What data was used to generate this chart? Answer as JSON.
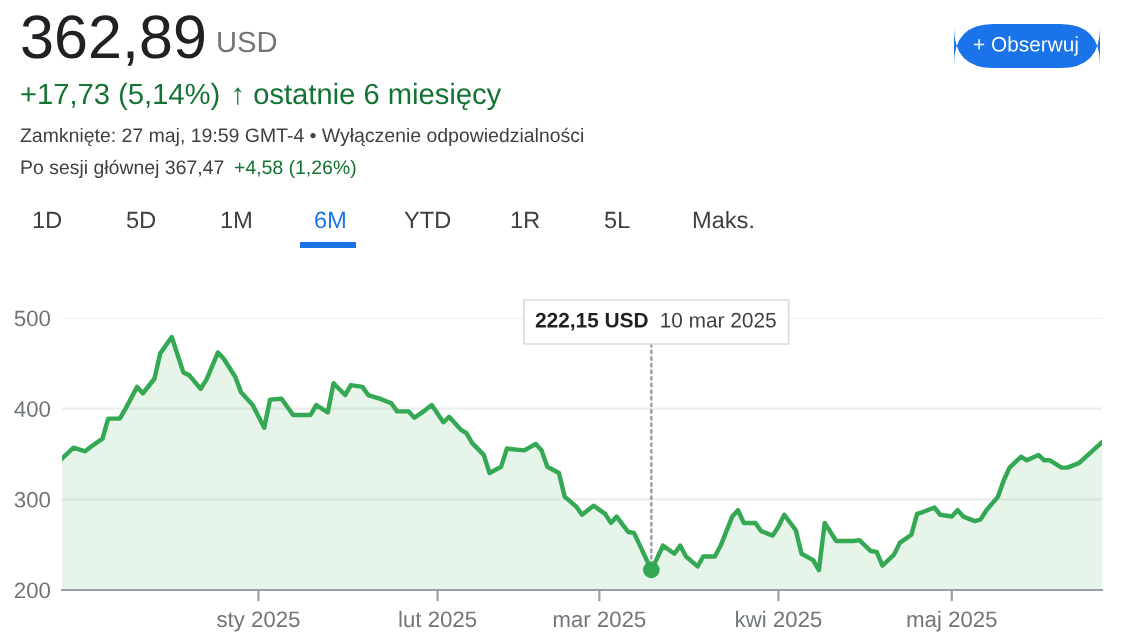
{
  "chart_data": {
    "type": "area",
    "title": "362,89",
    "color": "#34a853",
    "x": [
      "2024-11-28",
      "2024-11-30",
      "2024-12-02",
      "2024-12-03",
      "2024-12-05",
      "2024-12-06",
      "2024-12-08",
      "2024-12-09",
      "2024-12-11",
      "2024-12-12",
      "2024-12-14",
      "2024-12-15",
      "2024-12-17",
      "2024-12-19",
      "2024-12-20",
      "2024-12-22",
      "2024-12-23",
      "2024-12-25",
      "2024-12-26",
      "2024-12-28",
      "2024-12-29",
      "2024-12-31",
      "2025-01-02",
      "2025-01-03",
      "2025-01-05",
      "2025-01-07",
      "2025-01-10",
      "2025-01-11",
      "2025-01-13",
      "2025-01-14",
      "2025-01-16",
      "2025-01-17",
      "2025-01-19",
      "2025-01-20",
      "2025-01-22",
      "2025-01-24",
      "2025-01-25",
      "2025-01-27",
      "2025-01-28",
      "2025-01-30",
      "2025-01-31",
      "2025-02-02",
      "2025-02-03",
      "2025-02-05",
      "2025-02-06",
      "2025-02-07",
      "2025-02-09",
      "2025-02-10",
      "2025-02-12",
      "2025-02-13",
      "2025-02-16",
      "2025-02-18",
      "2025-02-19",
      "2025-02-20",
      "2025-02-22",
      "2025-02-23",
      "2025-02-25",
      "2025-02-26",
      "2025-02-28",
      "2025-03-02",
      "2025-03-03",
      "2025-03-04",
      "2025-03-06",
      "2025-03-07",
      "2025-03-10",
      "2025-03-11",
      "2025-03-12",
      "2025-03-14",
      "2025-03-15",
      "2025-03-16",
      "2025-03-18",
      "2025-03-19",
      "2025-03-21",
      "2025-03-22",
      "2025-03-24",
      "2025-03-25",
      "2025-03-26",
      "2025-03-28",
      "2025-03-29",
      "2025-03-31",
      "2025-04-01",
      "2025-04-02",
      "2025-04-04",
      "2025-04-05",
      "2025-04-07",
      "2025-04-08",
      "2025-04-09",
      "2025-04-11",
      "2025-04-14",
      "2025-04-15",
      "2025-04-17",
      "2025-04-18",
      "2025-04-19",
      "2025-04-21",
      "2025-04-22",
      "2025-04-24",
      "2025-04-25",
      "2025-04-26",
      "2025-04-28",
      "2025-04-29",
      "2025-05-01",
      "2025-05-02",
      "2025-05-03",
      "2025-05-05",
      "2025-05-06",
      "2025-05-07",
      "2025-05-09",
      "2025-05-10",
      "2025-05-11",
      "2025-05-13",
      "2025-05-14",
      "2025-05-16",
      "2025-05-17",
      "2025-05-18",
      "2025-05-20",
      "2025-05-21",
      "2025-05-23",
      "2025-05-27"
    ],
    "values": [
      345,
      357,
      353,
      358,
      367,
      389,
      389,
      400,
      424,
      417,
      433,
      461,
      479,
      440,
      437,
      422,
      432,
      462,
      455,
      435,
      418,
      404,
      379,
      410,
      411,
      393,
      393,
      404,
      396,
      428,
      415,
      426,
      424,
      415,
      411,
      406,
      397,
      397,
      390,
      399,
      404,
      385,
      391,
      377,
      373,
      362,
      349,
      329,
      336,
      356,
      354,
      361,
      354,
      336,
      329,
      303,
      292,
      283,
      293,
      284,
      274,
      281,
      264,
      263,
      222.15,
      235,
      249,
      240,
      249,
      237,
      226,
      237,
      237,
      249,
      281,
      288,
      274,
      274,
      265,
      260,
      270,
      283,
      266,
      240,
      233,
      222,
      274,
      254,
      254,
      255,
      243,
      242,
      227,
      239,
      252,
      261,
      284,
      286,
      291,
      283,
      281,
      288,
      281,
      276,
      278,
      288,
      303,
      321,
      335,
      347,
      343,
      349,
      343,
      343,
      335,
      335,
      340,
      362.89
    ],
    "xlim": [
      "2024-11-28",
      "2025-05-27"
    ],
    "xticks": [
      {
        "value": "2025-01-01",
        "label": "sty 2025"
      },
      {
        "value": "2025-02-01",
        "label": "lut 2025"
      },
      {
        "value": "2025-03-01",
        "label": "mar 2025"
      },
      {
        "value": "2025-04-01",
        "label": "kwi 2025"
      },
      {
        "value": "2025-05-01",
        "label": "maj 2025"
      }
    ],
    "ylim": [
      200,
      500
    ],
    "yticks": [
      200,
      300,
      400,
      500
    ],
    "grid": "y",
    "annotations": [
      "USD",
      "+17,73 (5,14%)",
      "↑ ostatnie 6 miesięcy",
      "Zamknięte: 27 maj, 19:59 GMT-4 • Wyłączenie odpowiedzialności",
      "Po sesji głównej 367,47",
      "+4,58 (1,26%)",
      "+ Obserwuj",
      "1D",
      "5D",
      "1M",
      "6M",
      "YTD",
      "1R",
      "5L",
      "Maks.",
      {
        "text": "222,15 USD",
        "x": "2025-03-10",
        "y": 222.15
      },
      "10 mar 2025"
    ]
  }
}
